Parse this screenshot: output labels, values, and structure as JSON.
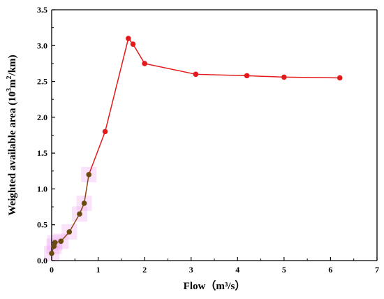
{
  "chart_data": {
    "type": "line",
    "xlabel": "Flow（m³/s）",
    "ylabel_parts": {
      "prefix": "Weighted available area (10",
      "sup1": "3",
      "mid": "m",
      "sup2": "2",
      "suffix": "/km)"
    },
    "xlim": [
      0,
      7
    ],
    "ylim": [
      0,
      3.5
    ],
    "x_ticks": [
      "0",
      "1",
      "2",
      "3",
      "4",
      "5",
      "6",
      "7"
    ],
    "y_ticks": [
      "0.0",
      "0.5",
      "1.0",
      "1.5",
      "2.0",
      "2.5",
      "3.0",
      "3.5"
    ],
    "grid": false,
    "colors": {
      "line": "#e31a1c",
      "marker": "#e31a1c",
      "highlight_line": "#8b4513",
      "highlight_marker": "#6b4a10",
      "highlight_glow": "#ee99ee"
    },
    "series": [
      {
        "x": [
          0.0,
          0.05,
          0.07,
          0.2,
          0.38,
          0.6,
          0.7,
          0.8,
          1.15,
          1.65,
          1.75,
          2.0,
          3.1,
          4.2,
          5.0,
          6.2
        ],
        "y": [
          0.1,
          0.2,
          0.25,
          0.27,
          0.4,
          0.65,
          0.8,
          1.2,
          1.8,
          3.1,
          3.02,
          2.75,
          2.6,
          2.58,
          2.56,
          2.55
        ]
      }
    ],
    "highlight_count": 8
  }
}
